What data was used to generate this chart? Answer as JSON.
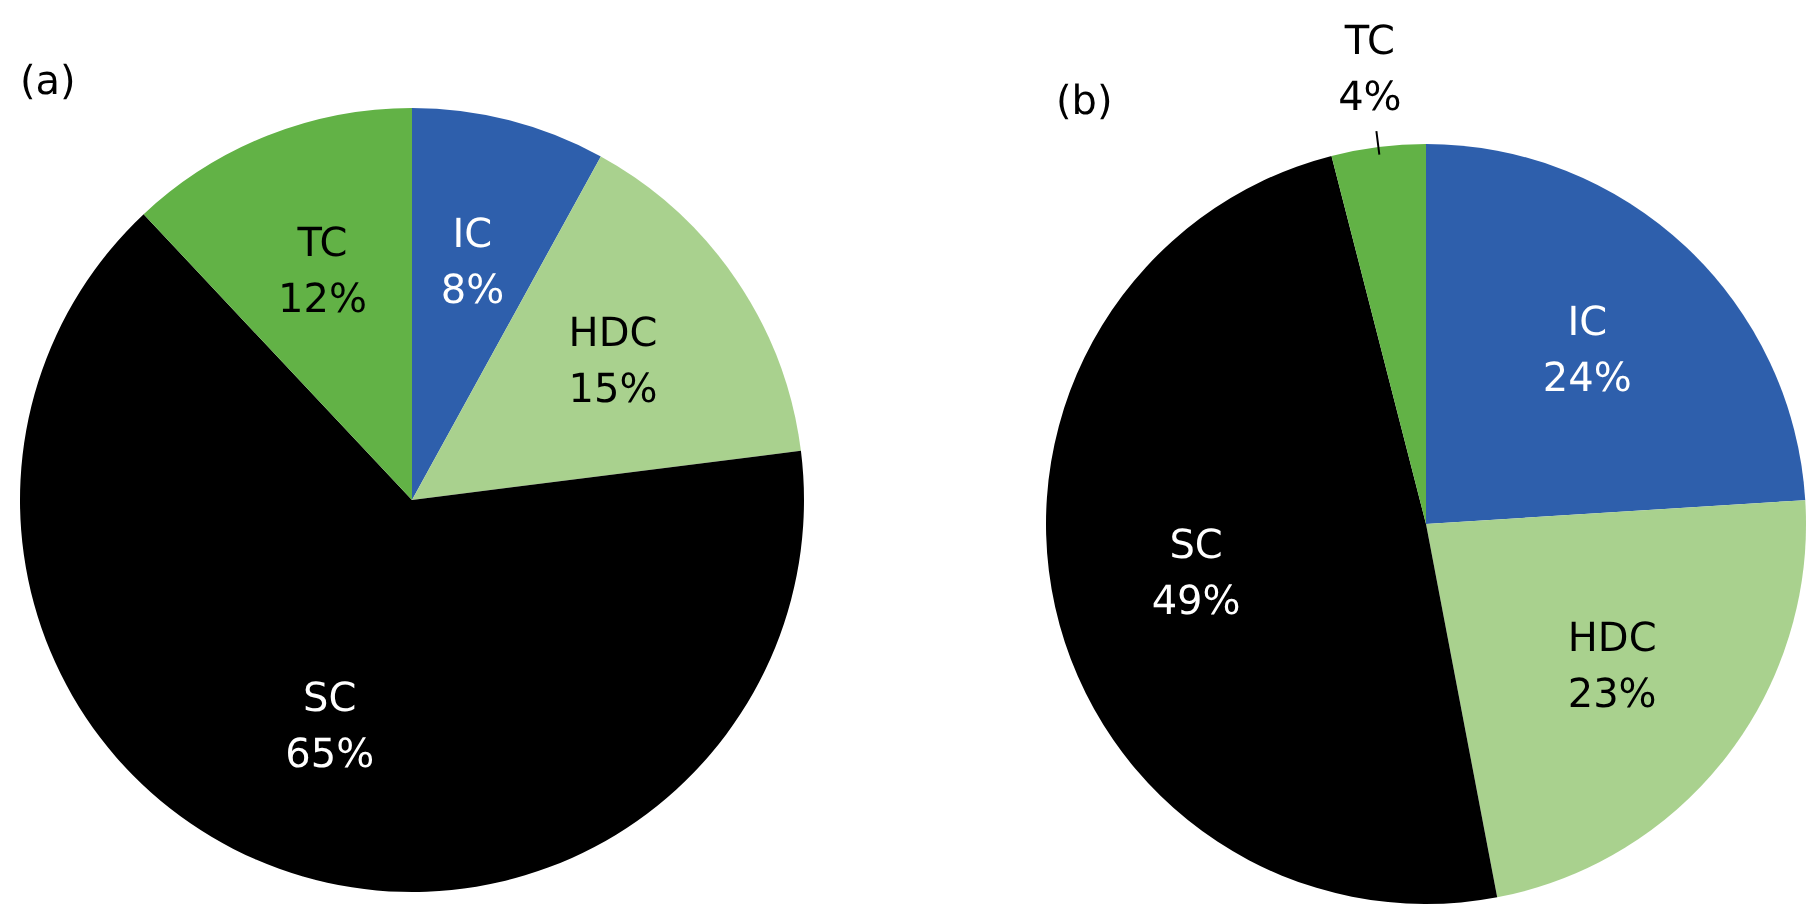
{
  "chart_data": [
    {
      "type": "pie",
      "title": "(a)",
      "categories": [
        "IC",
        "HDC",
        "SC",
        "TC"
      ],
      "values": [
        8,
        15,
        65,
        12
      ],
      "value_labels": [
        "8%",
        "15%",
        "65%",
        "12%"
      ],
      "colors": [
        "#2e5fac",
        "#a9d18e",
        "#000000",
        "#62b246"
      ],
      "legend": false
    },
    {
      "type": "pie",
      "title": "(b)",
      "categories": [
        "IC",
        "HDC",
        "SC",
        "TC"
      ],
      "values": [
        24,
        23,
        49,
        4
      ],
      "value_labels": [
        "24%",
        "23%",
        "49%",
        "4%"
      ],
      "colors": [
        "#2e5fac",
        "#a9d18e",
        "#000000",
        "#62b246"
      ],
      "legend": false
    }
  ]
}
